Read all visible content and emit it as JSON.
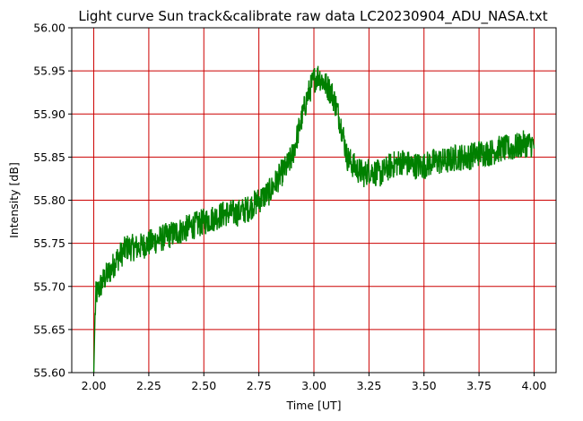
{
  "chart_data": {
    "type": "line",
    "title": "Light curve Sun track&calibrate raw data LC20230904_ADU_NASA.txt",
    "xlabel": "Time [UT]",
    "ylabel": "Intensity [dB]",
    "xlim": [
      1.9,
      4.1
    ],
    "ylim": [
      55.6,
      56.0
    ],
    "xticks": [
      "2.00",
      "2.25",
      "2.50",
      "2.75",
      "3.00",
      "3.25",
      "3.50",
      "3.75",
      "4.00"
    ],
    "yticks": [
      "55.60",
      "55.65",
      "55.70",
      "55.75",
      "55.80",
      "55.85",
      "55.90",
      "55.95",
      "56.00"
    ],
    "grid": true,
    "grid_color": "#cc0000",
    "series": [
      {
        "color": "#008000",
        "x": [
          2.0,
          2.005,
          2.01,
          2.02,
          2.03,
          2.05,
          2.08,
          2.1,
          2.15,
          2.2,
          2.25,
          2.3,
          2.35,
          2.4,
          2.45,
          2.5,
          2.55,
          2.6,
          2.65,
          2.7,
          2.75,
          2.8,
          2.85,
          2.88,
          2.9,
          2.92,
          2.95,
          2.97,
          3.0,
          3.02,
          3.05,
          3.08,
          3.1,
          3.13,
          3.15,
          3.18,
          3.2,
          3.23,
          3.25,
          3.3,
          3.35,
          3.4,
          3.45,
          3.5,
          3.55,
          3.6,
          3.65,
          3.7,
          3.75,
          3.8,
          3.85,
          3.9,
          3.95,
          4.0
        ],
        "y": [
          55.6,
          55.66,
          55.69,
          55.695,
          55.7,
          55.71,
          55.72,
          55.73,
          55.745,
          55.745,
          55.75,
          55.755,
          55.76,
          55.765,
          55.77,
          55.775,
          55.78,
          55.785,
          55.785,
          55.79,
          55.8,
          55.81,
          55.83,
          55.84,
          55.85,
          55.87,
          55.9,
          55.92,
          55.94,
          55.945,
          55.935,
          55.925,
          55.91,
          55.88,
          55.85,
          55.84,
          55.835,
          55.83,
          55.835,
          55.83,
          55.84,
          55.845,
          55.84,
          55.84,
          55.845,
          55.845,
          55.85,
          55.85,
          55.855,
          55.855,
          55.86,
          55.86,
          55.865,
          55.865
        ]
      }
    ]
  }
}
